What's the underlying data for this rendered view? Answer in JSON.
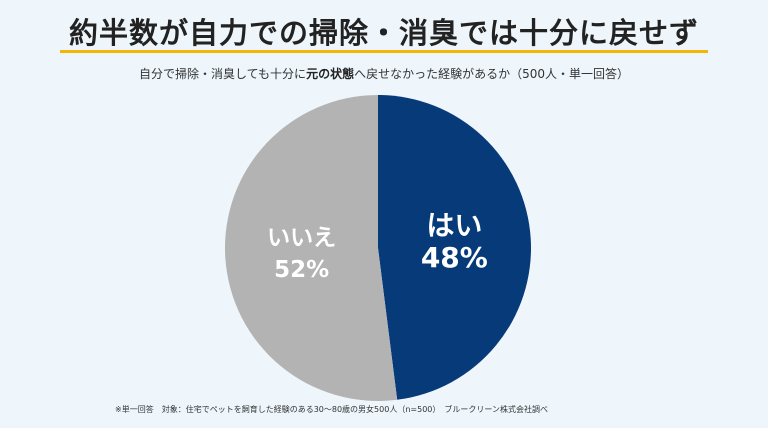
{
  "title": "約半数が自力での掃除・消臭では十分に戻せず",
  "subtitle": {
    "before": "自分で掃除・消臭しても十分に",
    "bold": "元の状態",
    "after": "へ戻せなかった経験があるか（500人・単一回答）"
  },
  "footnote": "※単一回答　対象：住宅でペットを飼育した経験のある30～80歳の男女500人（n=500）　ブルークリーン株式会社調べ",
  "colors": {
    "accent_underline": "#f2b705",
    "yes_slice": "#073a78",
    "no_slice": "#b3b3b3",
    "slice_label": "#ffffff"
  },
  "chart_data": {
    "type": "pie",
    "title": "自分で掃除・消臭しても十分に元の状態へ戻せなかった経験があるか（500人・単一回答）",
    "slices": [
      {
        "label": "はい",
        "value": 48,
        "display": "48%",
        "color": "#073a78"
      },
      {
        "label": "いいえ",
        "value": 52,
        "display": "52%",
        "color": "#b3b3b3"
      }
    ],
    "start_angle": "top",
    "direction": "clockwise",
    "unit": "%"
  }
}
